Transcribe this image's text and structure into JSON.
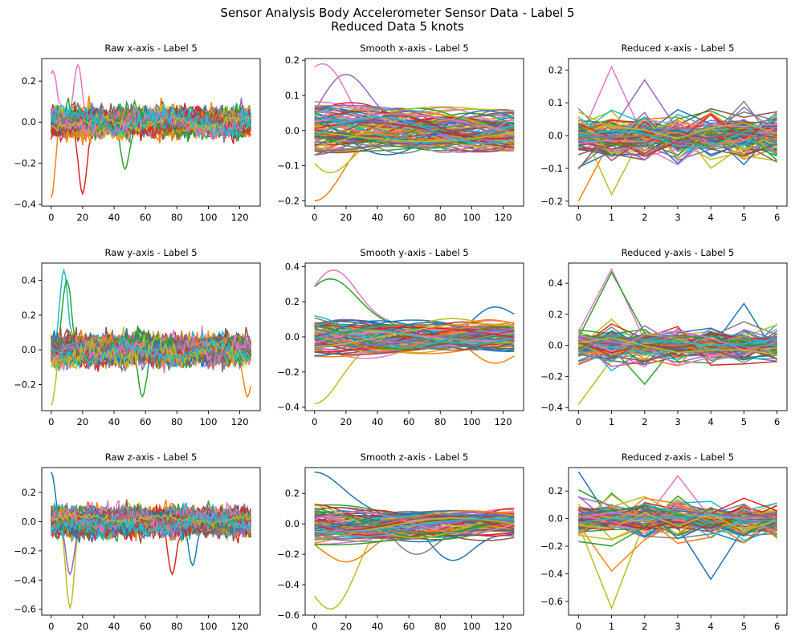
{
  "figure": {
    "title_line1": "Sensor Analysis Body Accelerometer Sensor Data - Label 5",
    "title_line2": "Reduced Data 5 knots"
  },
  "colors": [
    "#1f77b4",
    "#ff7f0e",
    "#2ca02c",
    "#d62728",
    "#9467bd",
    "#8c564b",
    "#e377c2",
    "#7f7f7f",
    "#bcbd22",
    "#17becf"
  ],
  "chart_data": [
    {
      "type": "line",
      "title": "Raw x-axis - Label 5",
      "kind": "raw",
      "xlim": [
        -6,
        133
      ],
      "ylim": [
        -0.41,
        0.31
      ],
      "xticks": [
        0,
        20,
        40,
        60,
        80,
        100,
        120
      ],
      "yticks": [
        -0.4,
        -0.2,
        0.0,
        0.2
      ],
      "num_series": 100,
      "x_range": [
        0,
        127
      ],
      "amplitude": 0.05,
      "highlights": [
        {
          "x": 0,
          "y": -0.37,
          "color": "#ff7f0e"
        },
        {
          "x": 20,
          "y": -0.35,
          "color": "#d62728"
        },
        {
          "x": 17,
          "y": 0.28,
          "color": "#e377c2"
        },
        {
          "x": 47,
          "y": -0.23,
          "color": "#2ca02c"
        },
        {
          "x": 1,
          "y": 0.25,
          "color": "#e377c2"
        }
      ]
    },
    {
      "type": "line",
      "title": "Smooth x-axis - Label 5",
      "kind": "smooth",
      "xlim": [
        -6,
        133
      ],
      "ylim": [
        -0.215,
        0.205
      ],
      "xticks": [
        0,
        20,
        40,
        60,
        80,
        100,
        120
      ],
      "yticks": [
        -0.2,
        -0.1,
        0.0,
        0.1,
        0.2
      ],
      "num_series": 100,
      "x_range": [
        0,
        127
      ],
      "amplitude": 0.04,
      "highlights": [
        {
          "x": 0,
          "y": -0.2,
          "color": "#ff7f0e"
        },
        {
          "x": 20,
          "y": 0.16,
          "color": "#9467bd"
        },
        {
          "x": 5,
          "y": 0.19,
          "color": "#e377c2"
        },
        {
          "x": 10,
          "y": -0.12,
          "color": "#bcbd22"
        }
      ]
    },
    {
      "type": "line",
      "title": "Reduced x-axis - Label 5",
      "kind": "reduced",
      "xlim": [
        -0.3,
        6.3
      ],
      "ylim": [
        -0.215,
        0.235
      ],
      "xticks": [
        0,
        1,
        2,
        3,
        4,
        5,
        6
      ],
      "yticks": [
        -0.2,
        -0.1,
        0.0,
        0.1,
        0.2
      ],
      "num_series": 100,
      "x_range": [
        0,
        6
      ],
      "amplitude": 0.045,
      "highlights": [
        {
          "x": 0,
          "y": -0.2,
          "color": "#ff7f0e"
        },
        {
          "x": 1,
          "y": 0.21,
          "color": "#e377c2"
        },
        {
          "x": 2,
          "y": 0.17,
          "color": "#9467bd"
        },
        {
          "x": 1,
          "y": -0.18,
          "color": "#bcbd22"
        }
      ]
    },
    {
      "type": "line",
      "title": "Raw y-axis - Label 5",
      "kind": "raw",
      "xlim": [
        -6,
        133
      ],
      "ylim": [
        -0.35,
        0.5
      ],
      "xticks": [
        0,
        20,
        40,
        60,
        80,
        100,
        120
      ],
      "yticks": [
        -0.2,
        0.0,
        0.2,
        0.4
      ],
      "num_series": 100,
      "x_range": [
        0,
        127
      ],
      "amplitude": 0.06,
      "highlights": [
        {
          "x": 8,
          "y": 0.46,
          "color": "#17becf"
        },
        {
          "x": 10,
          "y": 0.4,
          "color": "#2ca02c"
        },
        {
          "x": 0,
          "y": -0.32,
          "color": "#bcbd22"
        },
        {
          "x": 58,
          "y": -0.27,
          "color": "#2ca02c"
        },
        {
          "x": 125,
          "y": -0.27,
          "color": "#ff7f0e"
        }
      ]
    },
    {
      "type": "line",
      "title": "Smooth y-axis - Label 5",
      "kind": "smooth",
      "xlim": [
        -6,
        133
      ],
      "ylim": [
        -0.42,
        0.42
      ],
      "xticks": [
        0,
        20,
        40,
        60,
        80,
        100,
        120
      ],
      "yticks": [
        -0.4,
        -0.2,
        0.0,
        0.2,
        0.4
      ],
      "num_series": 100,
      "x_range": [
        0,
        127
      ],
      "amplitude": 0.06,
      "highlights": [
        {
          "x": 0,
          "y": -0.38,
          "color": "#bcbd22"
        },
        {
          "x": 12,
          "y": 0.38,
          "color": "#e377c2"
        },
        {
          "x": 10,
          "y": 0.33,
          "color": "#2ca02c"
        },
        {
          "x": 115,
          "y": 0.17,
          "color": "#1f77b4"
        },
        {
          "x": 115,
          "y": -0.15,
          "color": "#ff7f0e"
        }
      ]
    },
    {
      "type": "line",
      "title": "Reduced y-axis - Label 5",
      "kind": "reduced",
      "xlim": [
        -0.3,
        6.3
      ],
      "ylim": [
        -0.42,
        0.53
      ],
      "xticks": [
        0,
        1,
        2,
        3,
        4,
        5,
        6
      ],
      "yticks": [
        -0.4,
        -0.2,
        0.0,
        0.2,
        0.4
      ],
      "num_series": 100,
      "x_range": [
        0,
        6
      ],
      "amplitude": 0.07,
      "highlights": [
        {
          "x": 0,
          "y": -0.38,
          "color": "#bcbd22"
        },
        {
          "x": 1,
          "y": 0.49,
          "color": "#e377c2"
        },
        {
          "x": 1,
          "y": 0.47,
          "color": "#2ca02c"
        },
        {
          "x": 5,
          "y": 0.27,
          "color": "#1f77b4"
        },
        {
          "x": 2,
          "y": -0.25,
          "color": "#2ca02c"
        }
      ]
    },
    {
      "type": "line",
      "title": "Raw z-axis - Label 5",
      "kind": "raw",
      "xlim": [
        -6,
        133
      ],
      "ylim": [
        -0.64,
        0.37
      ],
      "xticks": [
        0,
        20,
        40,
        60,
        80,
        100,
        120
      ],
      "yticks": [
        -0.6,
        -0.4,
        -0.2,
        0.0,
        0.2
      ],
      "num_series": 100,
      "x_range": [
        0,
        127
      ],
      "amplitude": 0.07,
      "highlights": [
        {
          "x": 12,
          "y": -0.59,
          "color": "#bcbd22"
        },
        {
          "x": 0,
          "y": 0.34,
          "color": "#1f77b4"
        },
        {
          "x": 12,
          "y": -0.36,
          "color": "#9467bd"
        },
        {
          "x": 77,
          "y": -0.36,
          "color": "#d62728"
        },
        {
          "x": 90,
          "y": -0.3,
          "color": "#1f77b4"
        }
      ]
    },
    {
      "type": "line",
      "title": "Smooth z-axis - Label 5",
      "kind": "smooth",
      "xlim": [
        -6,
        133
      ],
      "ylim": [
        -0.6,
        0.37
      ],
      "xticks": [
        0,
        20,
        40,
        60,
        80,
        100,
        120
      ],
      "yticks": [
        -0.6,
        -0.4,
        -0.2,
        0.0,
        0.2
      ],
      "num_series": 100,
      "x_range": [
        0,
        127
      ],
      "amplitude": 0.07,
      "highlights": [
        {
          "x": 10,
          "y": -0.56,
          "color": "#bcbd22"
        },
        {
          "x": 0,
          "y": 0.34,
          "color": "#1f77b4"
        },
        {
          "x": 88,
          "y": -0.24,
          "color": "#1f77b4"
        },
        {
          "x": 65,
          "y": -0.2,
          "color": "#7f7f7f"
        },
        {
          "x": 20,
          "y": -0.25,
          "color": "#ff7f0e"
        }
      ]
    },
    {
      "type": "line",
      "title": "Reduced z-axis - Label 5",
      "kind": "reduced",
      "xlim": [
        -0.3,
        6.3
      ],
      "ylim": [
        -0.7,
        0.37
      ],
      "xticks": [
        0,
        1,
        2,
        3,
        4,
        5,
        6
      ],
      "yticks": [
        -0.6,
        -0.4,
        -0.2,
        0.0,
        0.2
      ],
      "num_series": 100,
      "x_range": [
        0,
        6
      ],
      "amplitude": 0.08,
      "highlights": [
        {
          "x": 1,
          "y": -0.65,
          "color": "#bcbd22"
        },
        {
          "x": 0,
          "y": 0.34,
          "color": "#1f77b4"
        },
        {
          "x": 4,
          "y": -0.44,
          "color": "#1f77b4"
        },
        {
          "x": 1,
          "y": -0.38,
          "color": "#ff7f0e"
        },
        {
          "x": 3,
          "y": 0.31,
          "color": "#e377c2"
        }
      ]
    }
  ]
}
